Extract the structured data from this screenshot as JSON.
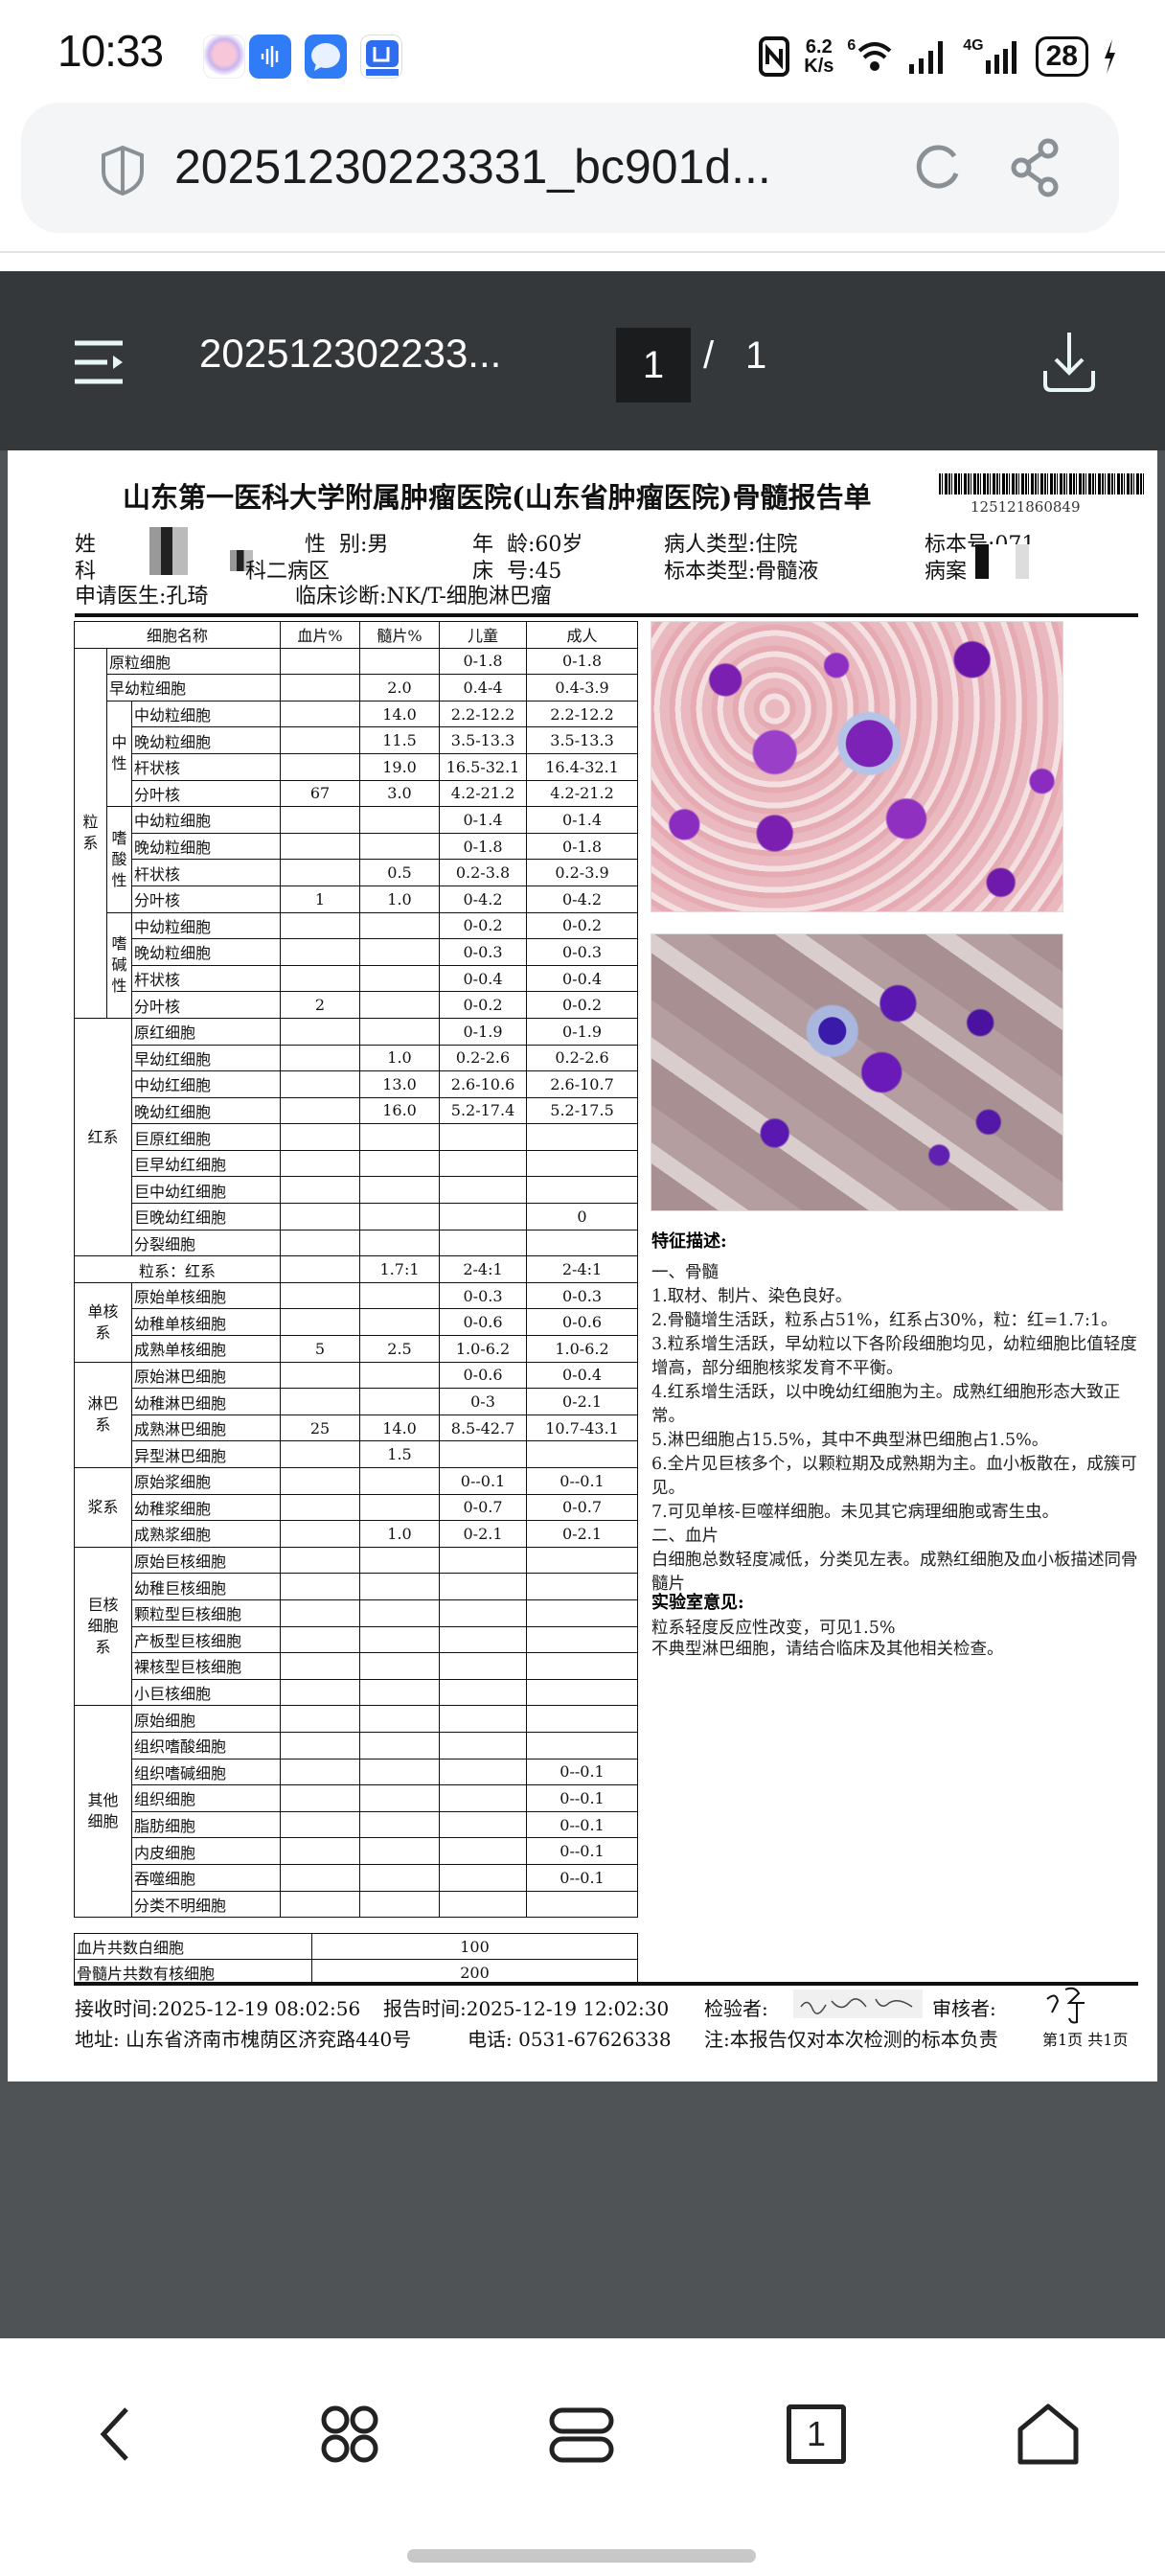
{
  "status_bar": {
    "time": "10:33",
    "net_speed_value": "6.2",
    "net_speed_unit": "K/s",
    "wifi_label": "6",
    "cell_label": "4G",
    "battery": "28",
    "icons": [
      "gallery-app-icon",
      "voice-app-icon",
      "message-app-icon",
      "shop-app-icon",
      "nfc-icon",
      "wifi-icon",
      "signal-icon",
      "signal-4g-icon",
      "battery-icon",
      "charging-icon"
    ]
  },
  "browser": {
    "url": "20251230223331_bc901d..."
  },
  "pdf_toolbar": {
    "title": "202512302233...",
    "current_page": "1",
    "separator": "/",
    "total_pages": "1"
  },
  "report": {
    "title": "山东第一医科大学附属肿瘤医院(山东省肿瘤医院)骨髓报告单",
    "barcode_number": "125121860849",
    "info": {
      "name_label": "姓",
      "gender": "性  别:男",
      "age": "年  龄:60岁",
      "patient_type": "病人类型:住院",
      "specimen_no": "标本号:071",
      "dept_label": "科",
      "dept_suffix": "科二病区",
      "bed": "床  号:45",
      "specimen_type": "标本类型:骨髓液",
      "record_label": "病案",
      "doctor": "申请医生:孔琦",
      "diagnosis": "临床诊断:NK/T-细胞淋巴瘤"
    },
    "table": {
      "headers": [
        "细胞名称",
        "血片%",
        "髓片%",
        "儿童",
        "成人"
      ],
      "sections": [
        {
          "label": "粒系",
          "groups": [
            {
              "label": "",
              "rows": [
                {
                  "name": "原粒细胞",
                  "values": [
                    "",
                    "",
                    "0-1.8",
                    "0-1.8"
                  ]
                },
                {
                  "name": "早幼粒细胞",
                  "values": [
                    "",
                    "2.0",
                    "0.4-4",
                    "0.4-3.9"
                  ]
                }
              ]
            },
            {
              "label": "中性",
              "rows": [
                {
                  "name": "中幼粒细胞",
                  "values": [
                    "",
                    "14.0",
                    "2.2-12.2",
                    "2.2-12.2"
                  ]
                },
                {
                  "name": "晚幼粒细胞",
                  "values": [
                    "",
                    "11.5",
                    "3.5-13.3",
                    "3.5-13.3"
                  ]
                },
                {
                  "name": "杆状核",
                  "values": [
                    "",
                    "19.0",
                    "16.5-32.1",
                    "16.4-32.1"
                  ]
                },
                {
                  "name": "分叶核",
                  "values": [
                    "67",
                    "3.0",
                    "4.2-21.2",
                    "4.2-21.2"
                  ]
                }
              ]
            },
            {
              "label": "嗜酸性",
              "rows": [
                {
                  "name": "中幼粒细胞",
                  "values": [
                    "",
                    "",
                    "0-1.4",
                    "0-1.4"
                  ]
                },
                {
                  "name": "晚幼粒细胞",
                  "values": [
                    "",
                    "",
                    "0-1.8",
                    "0-1.8"
                  ]
                },
                {
                  "name": "杆状核",
                  "values": [
                    "",
                    "0.5",
                    "0.2-3.8",
                    "0.2-3.9"
                  ]
                },
                {
                  "name": "分叶核",
                  "values": [
                    "1",
                    "1.0",
                    "0-4.2",
                    "0-4.2"
                  ]
                }
              ]
            },
            {
              "label": "嗜碱性",
              "rows": [
                {
                  "name": "中幼粒细胞",
                  "values": [
                    "",
                    "",
                    "0-0.2",
                    "0-0.2"
                  ]
                },
                {
                  "name": "晚幼粒细胞",
                  "values": [
                    "",
                    "",
                    "0-0.3",
                    "0-0.3"
                  ]
                },
                {
                  "name": "杆状核",
                  "values": [
                    "",
                    "",
                    "0-0.4",
                    "0-0.4"
                  ]
                },
                {
                  "name": "分叶核",
                  "values": [
                    "2",
                    "",
                    "0-0.2",
                    "0-0.2"
                  ]
                }
              ]
            }
          ]
        },
        {
          "label": "红系",
          "groups": [
            {
              "label": "",
              "rows": [
                {
                  "name": "原红细胞",
                  "values": [
                    "",
                    "",
                    "0-1.9",
                    "0-1.9"
                  ]
                },
                {
                  "name": "早幼红细胞",
                  "values": [
                    "",
                    "1.0",
                    "0.2-2.6",
                    "0.2-2.6"
                  ]
                },
                {
                  "name": "中幼红细胞",
                  "values": [
                    "",
                    "13.0",
                    "2.6-10.6",
                    "2.6-10.7"
                  ]
                },
                {
                  "name": "晚幼红细胞",
                  "values": [
                    "",
                    "16.0",
                    "5.2-17.4",
                    "5.2-17.5"
                  ]
                },
                {
                  "name": "巨原红细胞",
                  "values": [
                    "",
                    "",
                    "",
                    ""
                  ]
                },
                {
                  "name": "巨早幼红细胞",
                  "values": [
                    "",
                    "",
                    "",
                    ""
                  ]
                },
                {
                  "name": "巨中幼红细胞",
                  "values": [
                    "",
                    "",
                    "",
                    ""
                  ]
                },
                {
                  "name": "巨晚幼红细胞",
                  "values": [
                    "",
                    "",
                    "",
                    "0"
                  ]
                },
                {
                  "name": "分裂细胞",
                  "values": [
                    "",
                    "",
                    "",
                    ""
                  ]
                }
              ]
            }
          ]
        },
        {
          "ratio": true,
          "label": "粒系：红系",
          "values": [
            "",
            "1.7:1",
            "2-4:1",
            "2-4:1"
          ]
        },
        {
          "label": "单核系",
          "groups": [
            {
              "label": "",
              "rows": [
                {
                  "name": "原始单核细胞",
                  "values": [
                    "",
                    "",
                    "0-0.3",
                    "0-0.3"
                  ]
                },
                {
                  "name": "幼稚单核细胞",
                  "values": [
                    "",
                    "",
                    "0-0.6",
                    "0-0.6"
                  ]
                },
                {
                  "name": "成熟单核细胞",
                  "values": [
                    "5",
                    "2.5",
                    "1.0-6.2",
                    "1.0-6.2"
                  ]
                }
              ]
            }
          ]
        },
        {
          "label": "淋巴系",
          "groups": [
            {
              "label": "",
              "rows": [
                {
                  "name": "原始淋巴细胞",
                  "values": [
                    "",
                    "",
                    "0-0.6",
                    "0-0.4"
                  ]
                },
                {
                  "name": "幼稚淋巴细胞",
                  "values": [
                    "",
                    "",
                    "0-3",
                    "0-2.1"
                  ]
                },
                {
                  "name": "成熟淋巴细胞",
                  "values": [
                    "25",
                    "14.0",
                    "8.5-42.7",
                    "10.7-43.1"
                  ]
                },
                {
                  "name": "异型淋巴细胞",
                  "values": [
                    "",
                    "1.5",
                    "",
                    ""
                  ]
                }
              ]
            }
          ]
        },
        {
          "label": "浆系",
          "groups": [
            {
              "label": "",
              "rows": [
                {
                  "name": "原始浆细胞",
                  "values": [
                    "",
                    "",
                    "0--0.1",
                    "0--0.1"
                  ]
                },
                {
                  "name": "幼稚浆细胞",
                  "values": [
                    "",
                    "",
                    "0-0.7",
                    "0-0.7"
                  ]
                },
                {
                  "name": "成熟浆细胞",
                  "values": [
                    "",
                    "1.0",
                    "0-2.1",
                    "0-2.1"
                  ]
                }
              ]
            }
          ]
        },
        {
          "label": "巨核细胞系",
          "groups": [
            {
              "label": "",
              "rows": [
                {
                  "name": "原始巨核细胞",
                  "values": [
                    "",
                    "",
                    "",
                    ""
                  ]
                },
                {
                  "name": "幼稚巨核细胞",
                  "values": [
                    "",
                    "",
                    "",
                    ""
                  ]
                },
                {
                  "name": "颗粒型巨核细胞",
                  "values": [
                    "",
                    "",
                    "",
                    ""
                  ]
                },
                {
                  "name": "产板型巨核细胞",
                  "values": [
                    "",
                    "",
                    "",
                    ""
                  ]
                },
                {
                  "name": "裸核型巨核细胞",
                  "values": [
                    "",
                    "",
                    "",
                    ""
                  ]
                },
                {
                  "name": "小巨核细胞",
                  "values": [
                    "",
                    "",
                    "",
                    ""
                  ]
                }
              ]
            }
          ]
        },
        {
          "label": "其他细胞",
          "groups": [
            {
              "label": "",
              "rows": [
                {
                  "name": "原始细胞",
                  "values": [
                    "",
                    "",
                    "",
                    ""
                  ]
                },
                {
                  "name": "组织嗜酸细胞",
                  "values": [
                    "",
                    "",
                    "",
                    ""
                  ]
                },
                {
                  "name": "组织嗜碱细胞",
                  "values": [
                    "",
                    "",
                    "",
                    "0--0.1"
                  ]
                },
                {
                  "name": "组织细胞",
                  "values": [
                    "",
                    "",
                    "",
                    "0--0.1"
                  ]
                },
                {
                  "name": "脂肪细胞",
                  "values": [
                    "",
                    "",
                    "",
                    "0--0.1"
                  ]
                },
                {
                  "name": "内皮细胞",
                  "values": [
                    "",
                    "",
                    "",
                    "0--0.1"
                  ]
                },
                {
                  "name": "吞噬细胞",
                  "values": [
                    "",
                    "",
                    "",
                    "0--0.1"
                  ]
                },
                {
                  "name": "分类不明细胞",
                  "values": [
                    "",
                    "",
                    "",
                    ""
                  ]
                }
              ]
            }
          ]
        }
      ],
      "totals": [
        {
          "label": "血片共数白细胞",
          "value": "100"
        },
        {
          "label": "骨髓片共数有核细胞",
          "value": "200"
        }
      ]
    },
    "description": {
      "title": "特征描述:",
      "lines": [
        "一、骨髓",
        "1.取材、制片、染色良好。",
        "2.骨髓增生活跃，粒系占51%，红系占30%，粒：红=1.7:1。",
        "3.粒系增生活跃，早幼粒以下各阶段细胞均见，幼粒细胞比值轻度增高，部分细胞核浆发育不平衡。",
        "4.红系增生活跃，以中晚幼红细胞为主。成熟红细胞形态大致正常。",
        "5.淋巴细胞占15.5%，其中不典型淋巴细胞占1.5%。",
        "6.全片见巨核多个，以颗粒期及成熟期为主。血小板散在，成簇可见。",
        "7.可见单核-巨噬样细胞。未见其它病理细胞或寄生虫。",
        "二、血片",
        "白细胞总数轻度减低，分类见左表。成熟红细胞及血小板描述同骨髓片"
      ]
    },
    "opinion": {
      "title": "实验室意见:",
      "lines": [
        "粒系轻度反应性改变，可见1.5%",
        "不典型淋巴细胞，请结合临床及其他相关检查。"
      ]
    },
    "footer": {
      "received": "接收时间:2025-12-19 08:02:56",
      "reported": "报告时间:2025-12-19 12:02:30",
      "inspector_label": "检验者:",
      "reviewer_label": "审核者:",
      "address": "地址: 山东省济南市槐荫区济兖路440号",
      "phone": "电话: 0531-67626338",
      "note": "注:本报告仅对本次检测的标本负责",
      "page_info": "第1页 共1页"
    }
  },
  "nav_bar": {
    "icons": [
      "back-icon",
      "multitask-icon",
      "stack-icon",
      "tab-count-icon",
      "home-icon"
    ],
    "tab_count": "1"
  }
}
